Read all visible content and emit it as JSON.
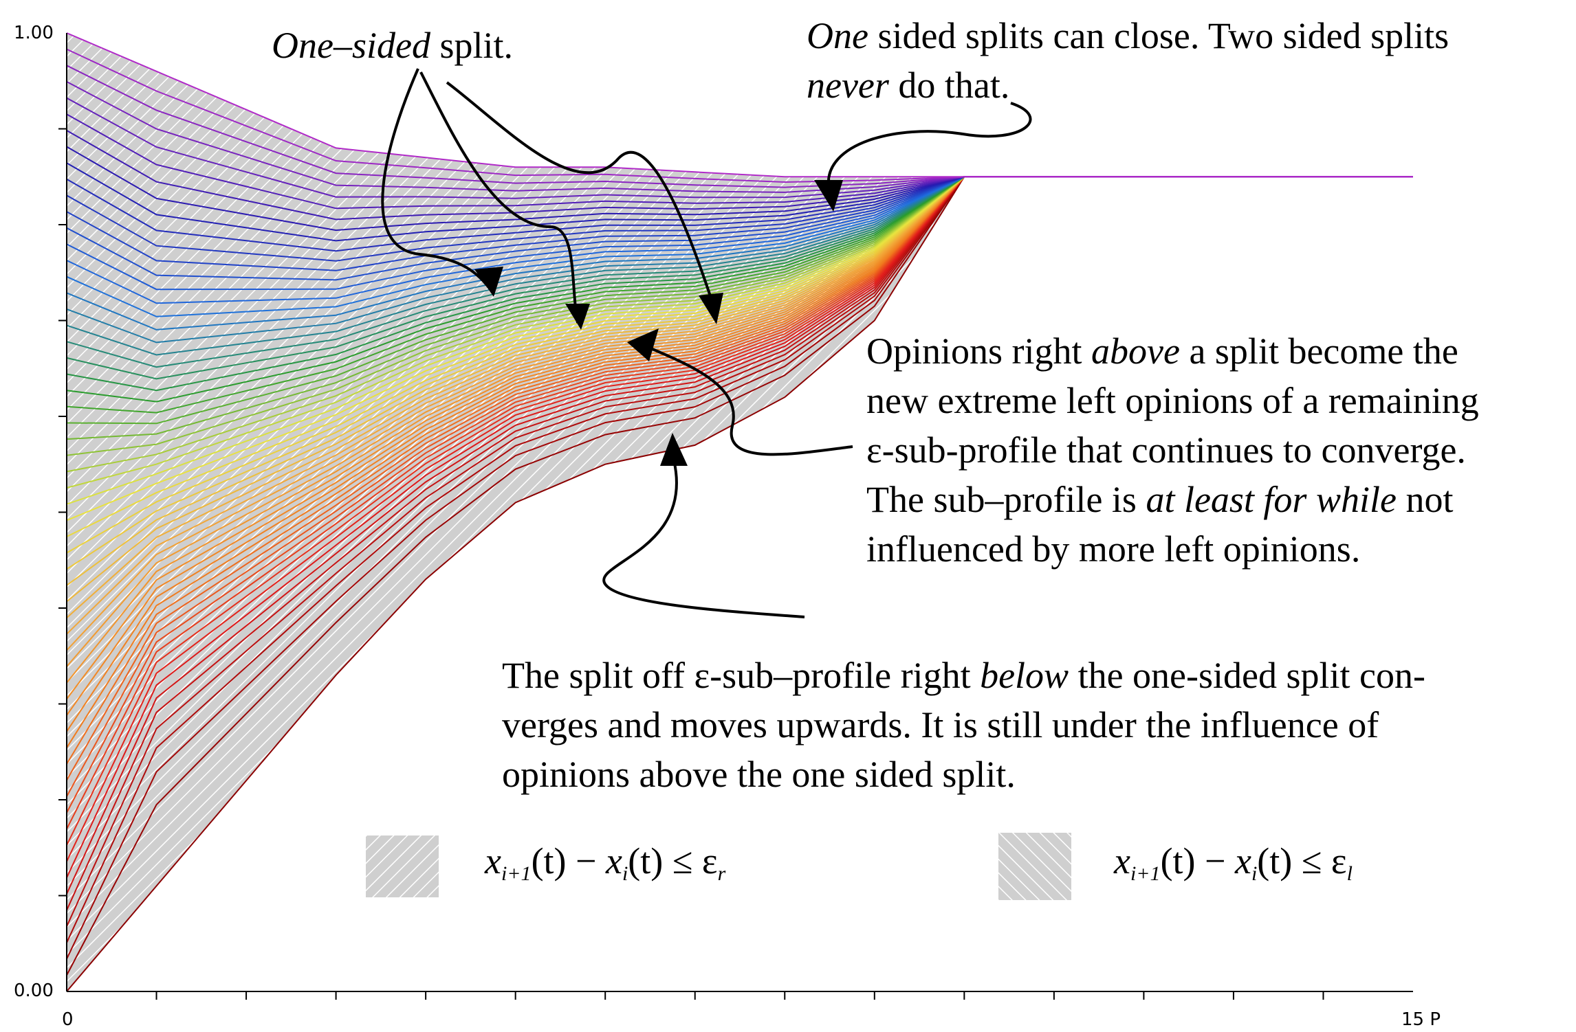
{
  "chart_data": {
    "type": "line",
    "title": "",
    "xlabel": "",
    "ylabel": "",
    "xlim": [
      0,
      15
    ],
    "ylim": [
      0.0,
      1.0
    ],
    "x_tick_labels": {
      "start": "0",
      "end": "15 P"
    },
    "y_tick_labels": {
      "top": "1.00",
      "bottom": "0.00"
    },
    "x_minor_ticks": [
      1,
      2,
      3,
      4,
      5,
      6,
      7,
      8,
      9,
      10,
      11,
      12,
      13,
      14
    ],
    "y_ticks": [
      0.1,
      0.2,
      0.3,
      0.4,
      0.5,
      0.6,
      0.7,
      0.8,
      0.9
    ],
    "n_opinions": 60,
    "color_scale": [
      "#8b0000",
      "#e21b1b",
      "#f07a1e",
      "#f2a838",
      "#e8e640",
      "#2a9d2a",
      "#1e6fe0",
      "#2419b0",
      "#b02ac8"
    ],
    "consensus_value": 0.85,
    "consensus_x": 10,
    "envelope": {
      "x": [
        0,
        1,
        2,
        3,
        4,
        5,
        6,
        7,
        8,
        9,
        10,
        15
      ],
      "lower": [
        0.0,
        0.11,
        0.22,
        0.33,
        0.43,
        0.51,
        0.55,
        0.57,
        0.62,
        0.7,
        0.85,
        0.85
      ],
      "upper": [
        1.0,
        0.96,
        0.92,
        0.88,
        0.87,
        0.86,
        0.86,
        0.855,
        0.85,
        0.85,
        0.85,
        0.85
      ]
    }
  },
  "annotations": {
    "one_sided": {
      "italic": "One–sided",
      "rest": " split."
    },
    "can_close": {
      "line1_italic": "One",
      "line1_rest": " sided splits can close. Two sided splits",
      "line2_italic": "never",
      "line2_rest": " do that."
    },
    "opinions_above": {
      "l1_pre": "Opinions right ",
      "l1_italic": "above",
      "l1_post": " a split become the",
      "l2": "new extreme left opinions of a remaining",
      "l3": "ε-sub-profile that continues to converge.",
      "l4_pre": "The sub–profile is ",
      "l4_italic": "at least for while",
      "l4_post": " not",
      "l5": "influenced by more left opinions."
    },
    "split_off": {
      "l1_pre": "The split off ε-sub–profile right ",
      "l1_italic": "below",
      "l1_post": " the one-sided split con-",
      "l2": "verges and moves upwards. It is still under the influence of",
      "l3": "opinions above the one sided split."
    }
  },
  "legend": {
    "right": {
      "x": "x",
      "i1": "i+1",
      "t": "(t) − ",
      "x2": "x",
      "i": "i",
      "t2": "(t) ≤ ε",
      "eps": "r"
    },
    "left": {
      "x": "x",
      "i1": "i+1",
      "t": "(t) − ",
      "x2": "x",
      "i": "i",
      "t2": "(t) ≤ ε",
      "eps": "l"
    },
    "hatch_color": "#cccccc"
  }
}
